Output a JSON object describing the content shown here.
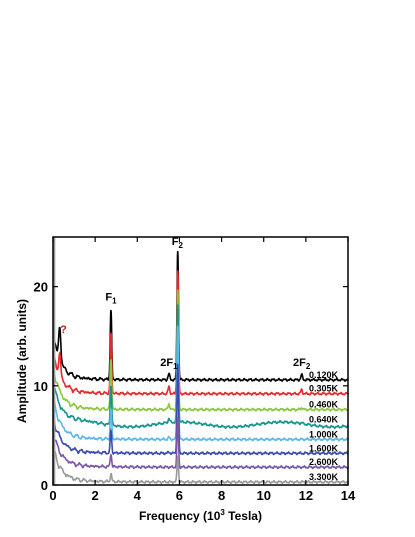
{
  "chart_data": {
    "type": "line",
    "xlabel_prefix": "Frequency (10",
    "xlabel_sup": "3",
    "xlabel_suffix": " Tesla)",
    "ylabel": "Amplitude (arb. units)",
    "xlim": [
      0,
      14
    ],
    "ylim": [
      0,
      25
    ],
    "xticks": [
      0,
      2,
      4,
      6,
      8,
      10,
      12,
      14
    ],
    "yticks": [
      0,
      10,
      20
    ],
    "grid": false,
    "legend": "none",
    "series": [
      {
        "name": "0.120K",
        "color": "#000000",
        "offset": 10.6,
        "f1": 7.0,
        "f2": 13.1,
        "low": 4.0,
        "h2f1": 0.6,
        "h2f2": 0.5
      },
      {
        "name": "0.305K",
        "color": "#e8282a",
        "offset": 9.2,
        "f1": 6.0,
        "f2": 12.5,
        "low": 3.6,
        "h2f1": 0.7,
        "h2f2": 0.4
      },
      {
        "name": "0.460K",
        "color": "#8dc63f",
        "offset": 7.6,
        "f1": 5.0,
        "f2": 12.0,
        "low": 3.8,
        "h2f1": 0.6,
        "h2f2": 0.2
      },
      {
        "name": "0.640K",
        "color": "#15958f",
        "offset": 6.1,
        "f1": 4.0,
        "f2": 11.8,
        "low": 3.8,
        "h2f1": 0.4,
        "h2f2": 0.1
      },
      {
        "name": "1.000K",
        "color": "#5cb8ea",
        "offset": 4.6,
        "f1": 3.0,
        "f2": 11.5,
        "low": 3.6,
        "h2f1": 0.2,
        "h2f2": 0.0
      },
      {
        "name": "1.600K",
        "color": "#3a4bab",
        "offset": 3.2,
        "f1": 2.2,
        "f2": 9.0,
        "low": 3.2,
        "h2f1": 0.1,
        "h2f2": 0.0
      },
      {
        "name": "2.600K",
        "color": "#7b57a6",
        "offset": 1.8,
        "f1": 1.3,
        "f2": 5.0,
        "low": 3.0,
        "h2f1": 0.0,
        "h2f2": 0.0
      },
      {
        "name": "3.300K",
        "color": "#9a9a9a",
        "offset": 0.3,
        "f1": 0.8,
        "f2": 2.5,
        "low": 3.0,
        "h2f1": 0.0,
        "h2f2": 0.0
      }
    ],
    "peaks": {
      "f1_freq": 2.75,
      "f2_freq": 5.92,
      "f2f1_freq": 5.5,
      "f2f2_freq": 11.8
    },
    "annotations": [
      {
        "text": "F",
        "sub": "1",
        "x": 2.75,
        "y": 18.6
      },
      {
        "text": "F",
        "sub": "2",
        "x": 5.9,
        "y": 24.2
      },
      {
        "text": "2F",
        "sub": "1",
        "x": 5.5,
        "y": 12.0
      },
      {
        "text": "2F",
        "sub": "2",
        "x": 11.8,
        "y": 12.0
      },
      {
        "text": "?",
        "sub": "",
        "x": 0.5,
        "y": 15.3
      }
    ]
  }
}
